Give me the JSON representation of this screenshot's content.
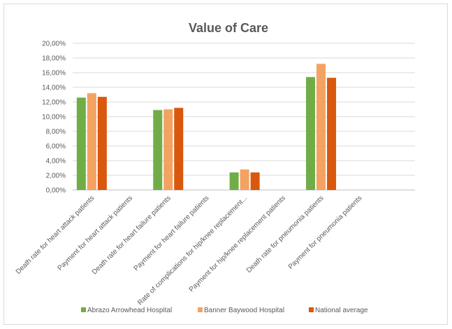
{
  "chart_data": {
    "type": "bar",
    "title": "Value of Care",
    "xlabel": "",
    "ylabel": "",
    "ylim": [
      0,
      20
    ],
    "yticks": [
      "0,00%",
      "2,00%",
      "4,00%",
      "6,00%",
      "8,00%",
      "10,00%",
      "12,00%",
      "14,00%",
      "16,00%",
      "18,00%",
      "20,00%"
    ],
    "grid": true,
    "legend_position": "bottom",
    "categories": [
      "Death rate for heart attack patients",
      "Payment for heart attack patients",
      "Death rate for heart failure patients",
      "Payment for heart failure patients",
      "Rate of complications for hip/knee replacement...",
      "Payment for hip/knee replacement patients",
      "Death rate for pneumonia patients",
      "Payment for pneumonia patients"
    ],
    "series": [
      {
        "name": "Abrazo Arrowhead Hospital",
        "color": "#70ad47",
        "values": [
          12.6,
          0,
          10.9,
          0,
          2.4,
          0,
          15.4,
          0
        ]
      },
      {
        "name": "Banner Baywood Hospital",
        "color": "#f4a261",
        "values": [
          13.2,
          0,
          11.0,
          0,
          2.8,
          0,
          17.2,
          0
        ]
      },
      {
        "name": "National average",
        "color": "#d9580d",
        "values": [
          12.7,
          0,
          11.2,
          0,
          2.4,
          0,
          15.3,
          0
        ]
      }
    ]
  }
}
